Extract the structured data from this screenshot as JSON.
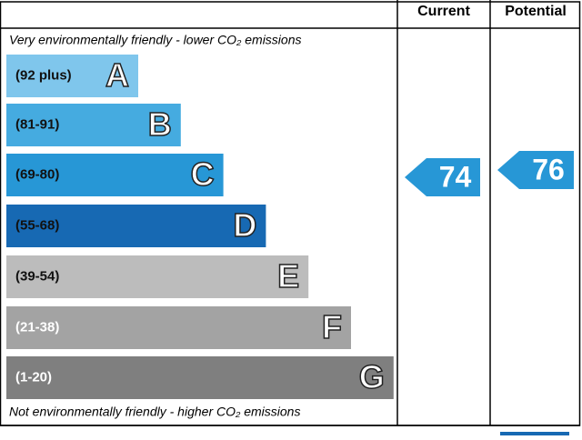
{
  "header": {
    "current": "Current",
    "potential": "Potential"
  },
  "top_note": "Very environmentally friendly - lower CO₂ emissions",
  "bottom_note": "Not environmentally friendly - higher CO₂ emissions",
  "bands": [
    {
      "range": "(92 plus)",
      "letter": "A",
      "color": "#7fc6ec"
    },
    {
      "range": "(81-91)",
      "letter": "B",
      "color": "#45abe0"
    },
    {
      "range": "(69-80)",
      "letter": "C",
      "color": "#2797d6"
    },
    {
      "range": "(55-68)",
      "letter": "D",
      "color": "#1769b3"
    },
    {
      "range": "(39-54)",
      "letter": "E",
      "color": "#bcbcbc"
    },
    {
      "range": "(21-38)",
      "letter": "F",
      "color": "#a3a3a3"
    },
    {
      "range": "(1-20)",
      "letter": "G",
      "color": "#7f7f7f"
    }
  ],
  "current": {
    "value": 74,
    "color": "#2797d6"
  },
  "potential": {
    "value": 76,
    "color": "#2797d6"
  }
}
